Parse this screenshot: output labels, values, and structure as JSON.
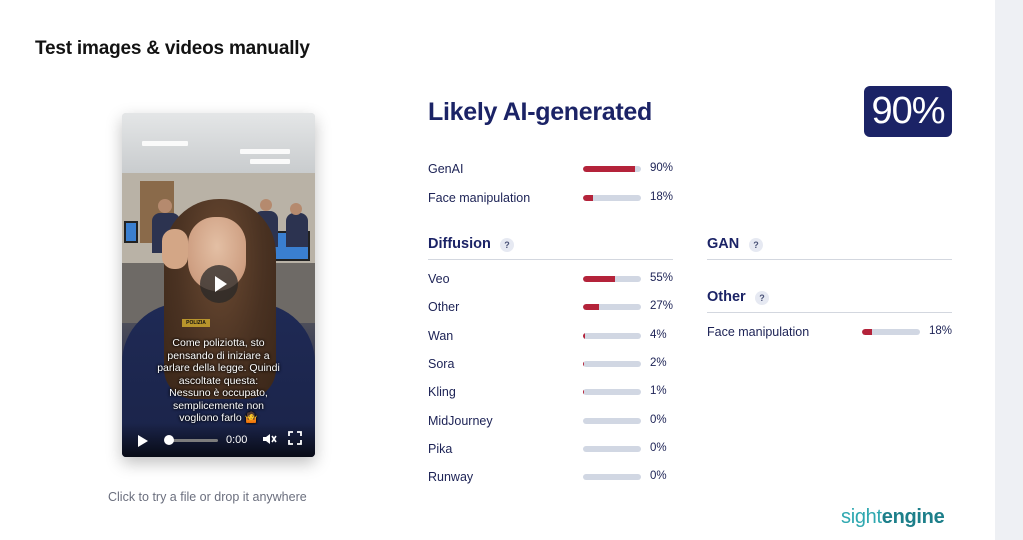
{
  "header": {
    "title": "Test images & videos manually"
  },
  "video": {
    "caption": "Come poliziotta, sto\npensando di iniziare a\nparlare della legge. Quindi\nascoltate questa:\nNessuno è occupato,\nsemplicemente non\nvogliono farlo 🤷",
    "badge": "POLIZIA",
    "time": "0:00",
    "progress": 0,
    "icons": [
      "play-icon",
      "mute-icon",
      "fullscreen-icon"
    ]
  },
  "upload_hint": "Click to try a file or drop it anywhere",
  "result": {
    "verdict": "Likely AI-generated",
    "score": "90%",
    "accent_color": "#1b2366",
    "bar_color": "#b4233a",
    "summary": [
      {
        "label": "GenAI",
        "pct": "90%",
        "value": 0.9
      },
      {
        "label": "Face manipulation",
        "pct": "18%",
        "value": 0.18
      }
    ],
    "diffusion": {
      "title": "Diffusion",
      "help": "?",
      "items": [
        {
          "label": "Veo",
          "pct": "55%",
          "value": 0.55
        },
        {
          "label": "Other",
          "pct": "27%",
          "value": 0.27
        },
        {
          "label": "Wan",
          "pct": "4%",
          "value": 0.04
        },
        {
          "label": "Sora",
          "pct": "2%",
          "value": 0.02
        },
        {
          "label": "Kling",
          "pct": "1%",
          "value": 0.01
        },
        {
          "label": "MidJourney",
          "pct": "0%",
          "value": 0
        },
        {
          "label": "Pika",
          "pct": "0%",
          "value": 0
        },
        {
          "label": "Runway",
          "pct": "0%",
          "value": 0
        }
      ]
    },
    "gan": {
      "title": "GAN",
      "help": "?"
    },
    "other": {
      "title": "Other",
      "help": "?",
      "items": [
        {
          "label": "Face manipulation",
          "pct": "18%",
          "value": 0.18
        }
      ]
    }
  },
  "brand": {
    "part1": "sight",
    "part2": "engine"
  }
}
